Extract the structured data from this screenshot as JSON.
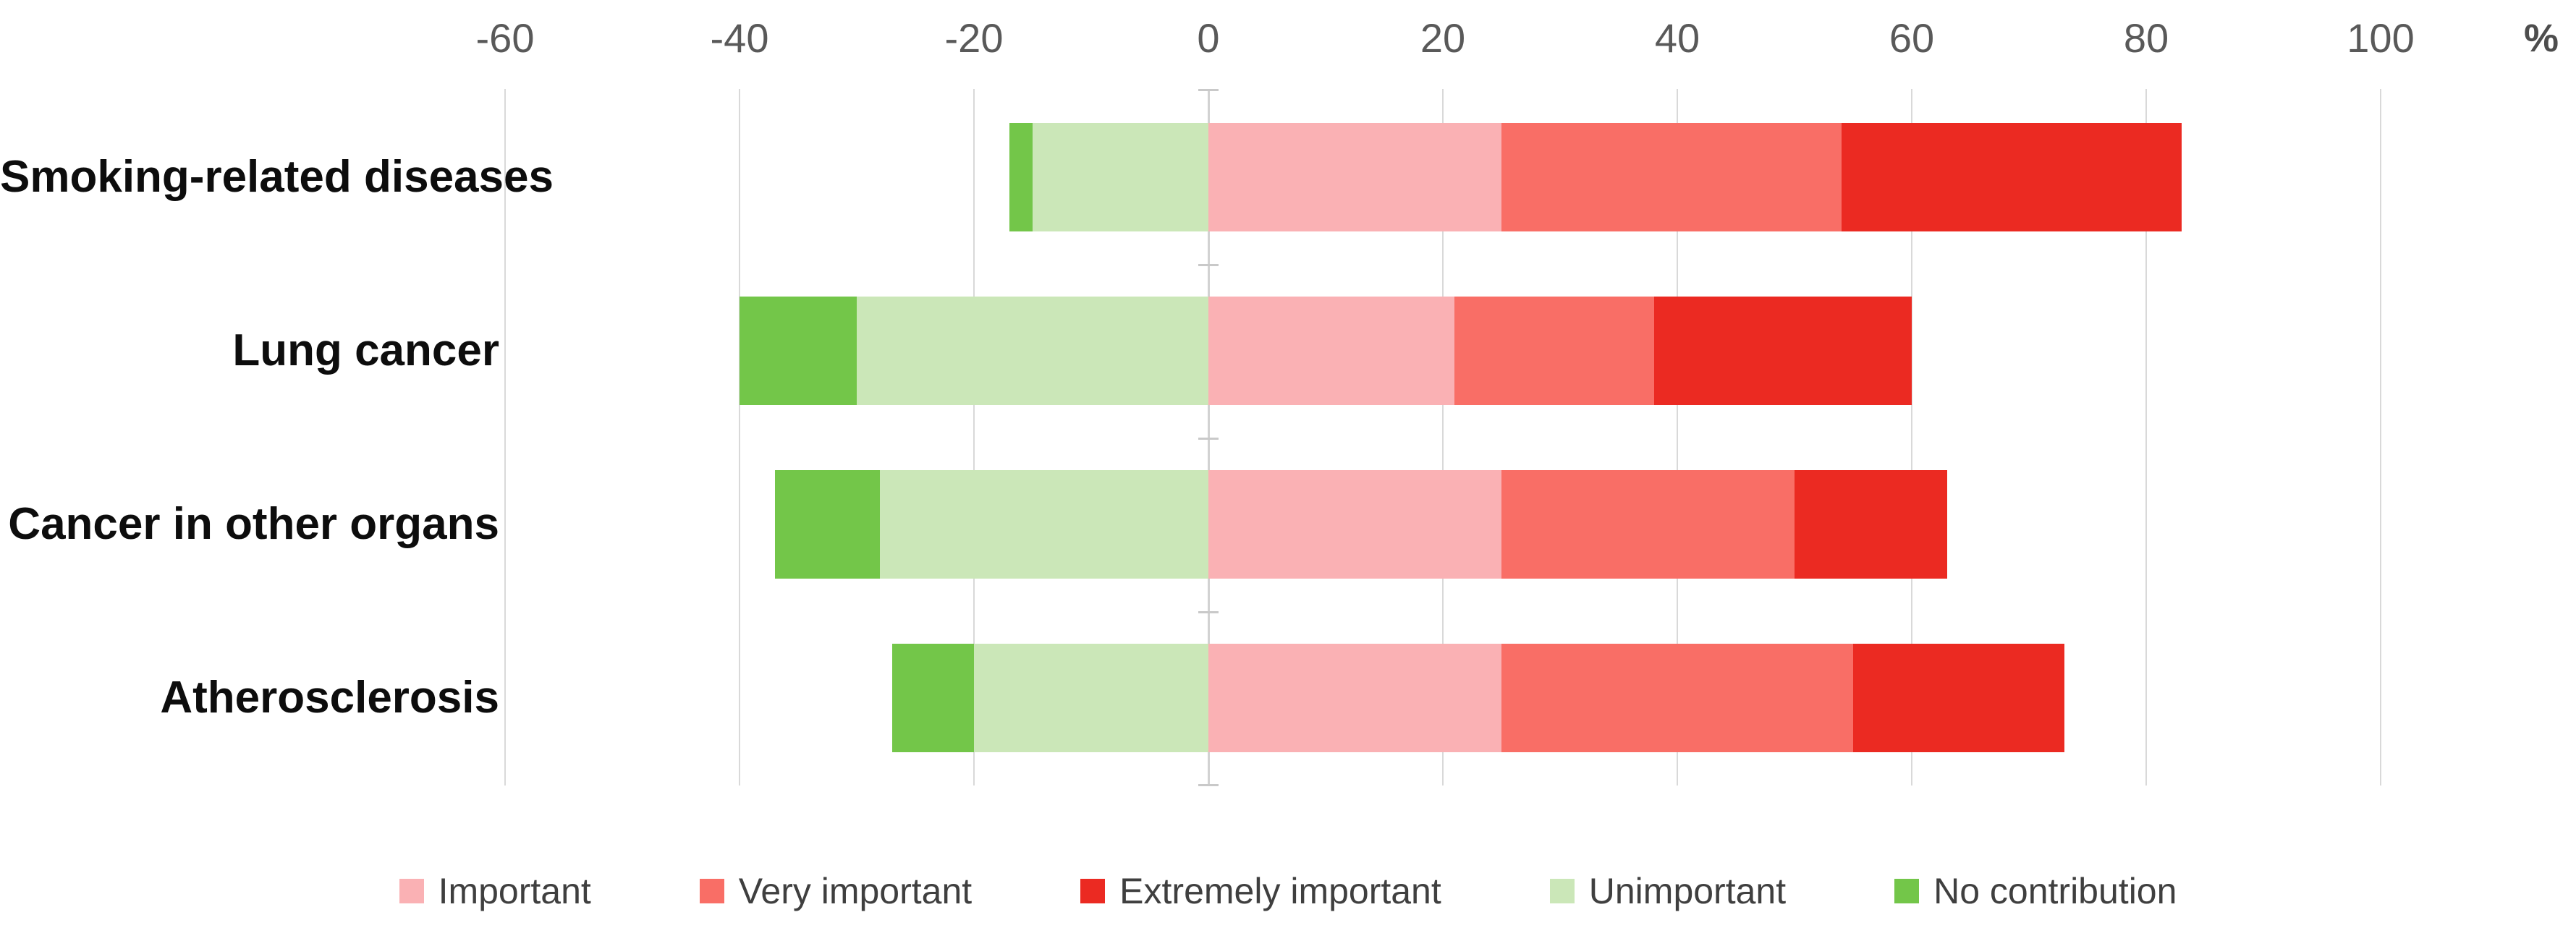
{
  "chart_data": {
    "type": "bar",
    "orientation": "horizontal",
    "stacking": "diverging",
    "title": "",
    "xlabel": "%",
    "ylabel": "",
    "xlim": [
      -60,
      100
    ],
    "x_ticks": [
      -60,
      -40,
      -20,
      0,
      20,
      40,
      60,
      80,
      100
    ],
    "grid": true,
    "legend_position": "bottom",
    "categories": [
      "Smoking-related diseases",
      "Lung cancer",
      "Cancer in other organs",
      "Atherosclerosis"
    ],
    "series": [
      {
        "name": "Important",
        "side": "right",
        "color": "#FAB1B4",
        "values": [
          25,
          21,
          25,
          25
        ]
      },
      {
        "name": "Very important",
        "side": "right",
        "color": "#F96E66",
        "values": [
          29,
          17,
          25,
          30
        ]
      },
      {
        "name": "Extremely important",
        "side": "right",
        "color": "#EB2A22",
        "values": [
          29,
          22,
          13,
          18
        ]
      },
      {
        "name": "Unimportant",
        "side": "left",
        "color": "#CBE7B8",
        "values": [
          15,
          30,
          28,
          20
        ]
      },
      {
        "name": "No contribution",
        "side": "left",
        "color": "#73C649",
        "values": [
          2,
          10,
          9,
          7
        ]
      }
    ]
  },
  "axis": {
    "tick_labels": [
      "-60",
      "-40",
      "-20",
      "0",
      "20",
      "40",
      "60",
      "80",
      "100"
    ],
    "unit_label": "%"
  },
  "legend": {
    "items": [
      {
        "label": "Important",
        "color": "#FAB1B4"
      },
      {
        "label": "Very important",
        "color": "#F96E66"
      },
      {
        "label": "Extremely important",
        "color": "#EB2A22"
      },
      {
        "label": "Unimportant",
        "color": "#CBE7B8"
      },
      {
        "label": "No contribution",
        "color": "#73C649"
      }
    ]
  },
  "colors": {
    "gridline": "#D9D9D9",
    "axis_text": "#595959",
    "category_text": "#0D0D0D",
    "legend_text": "#3F3F3F",
    "background": "#FFFFFF"
  }
}
